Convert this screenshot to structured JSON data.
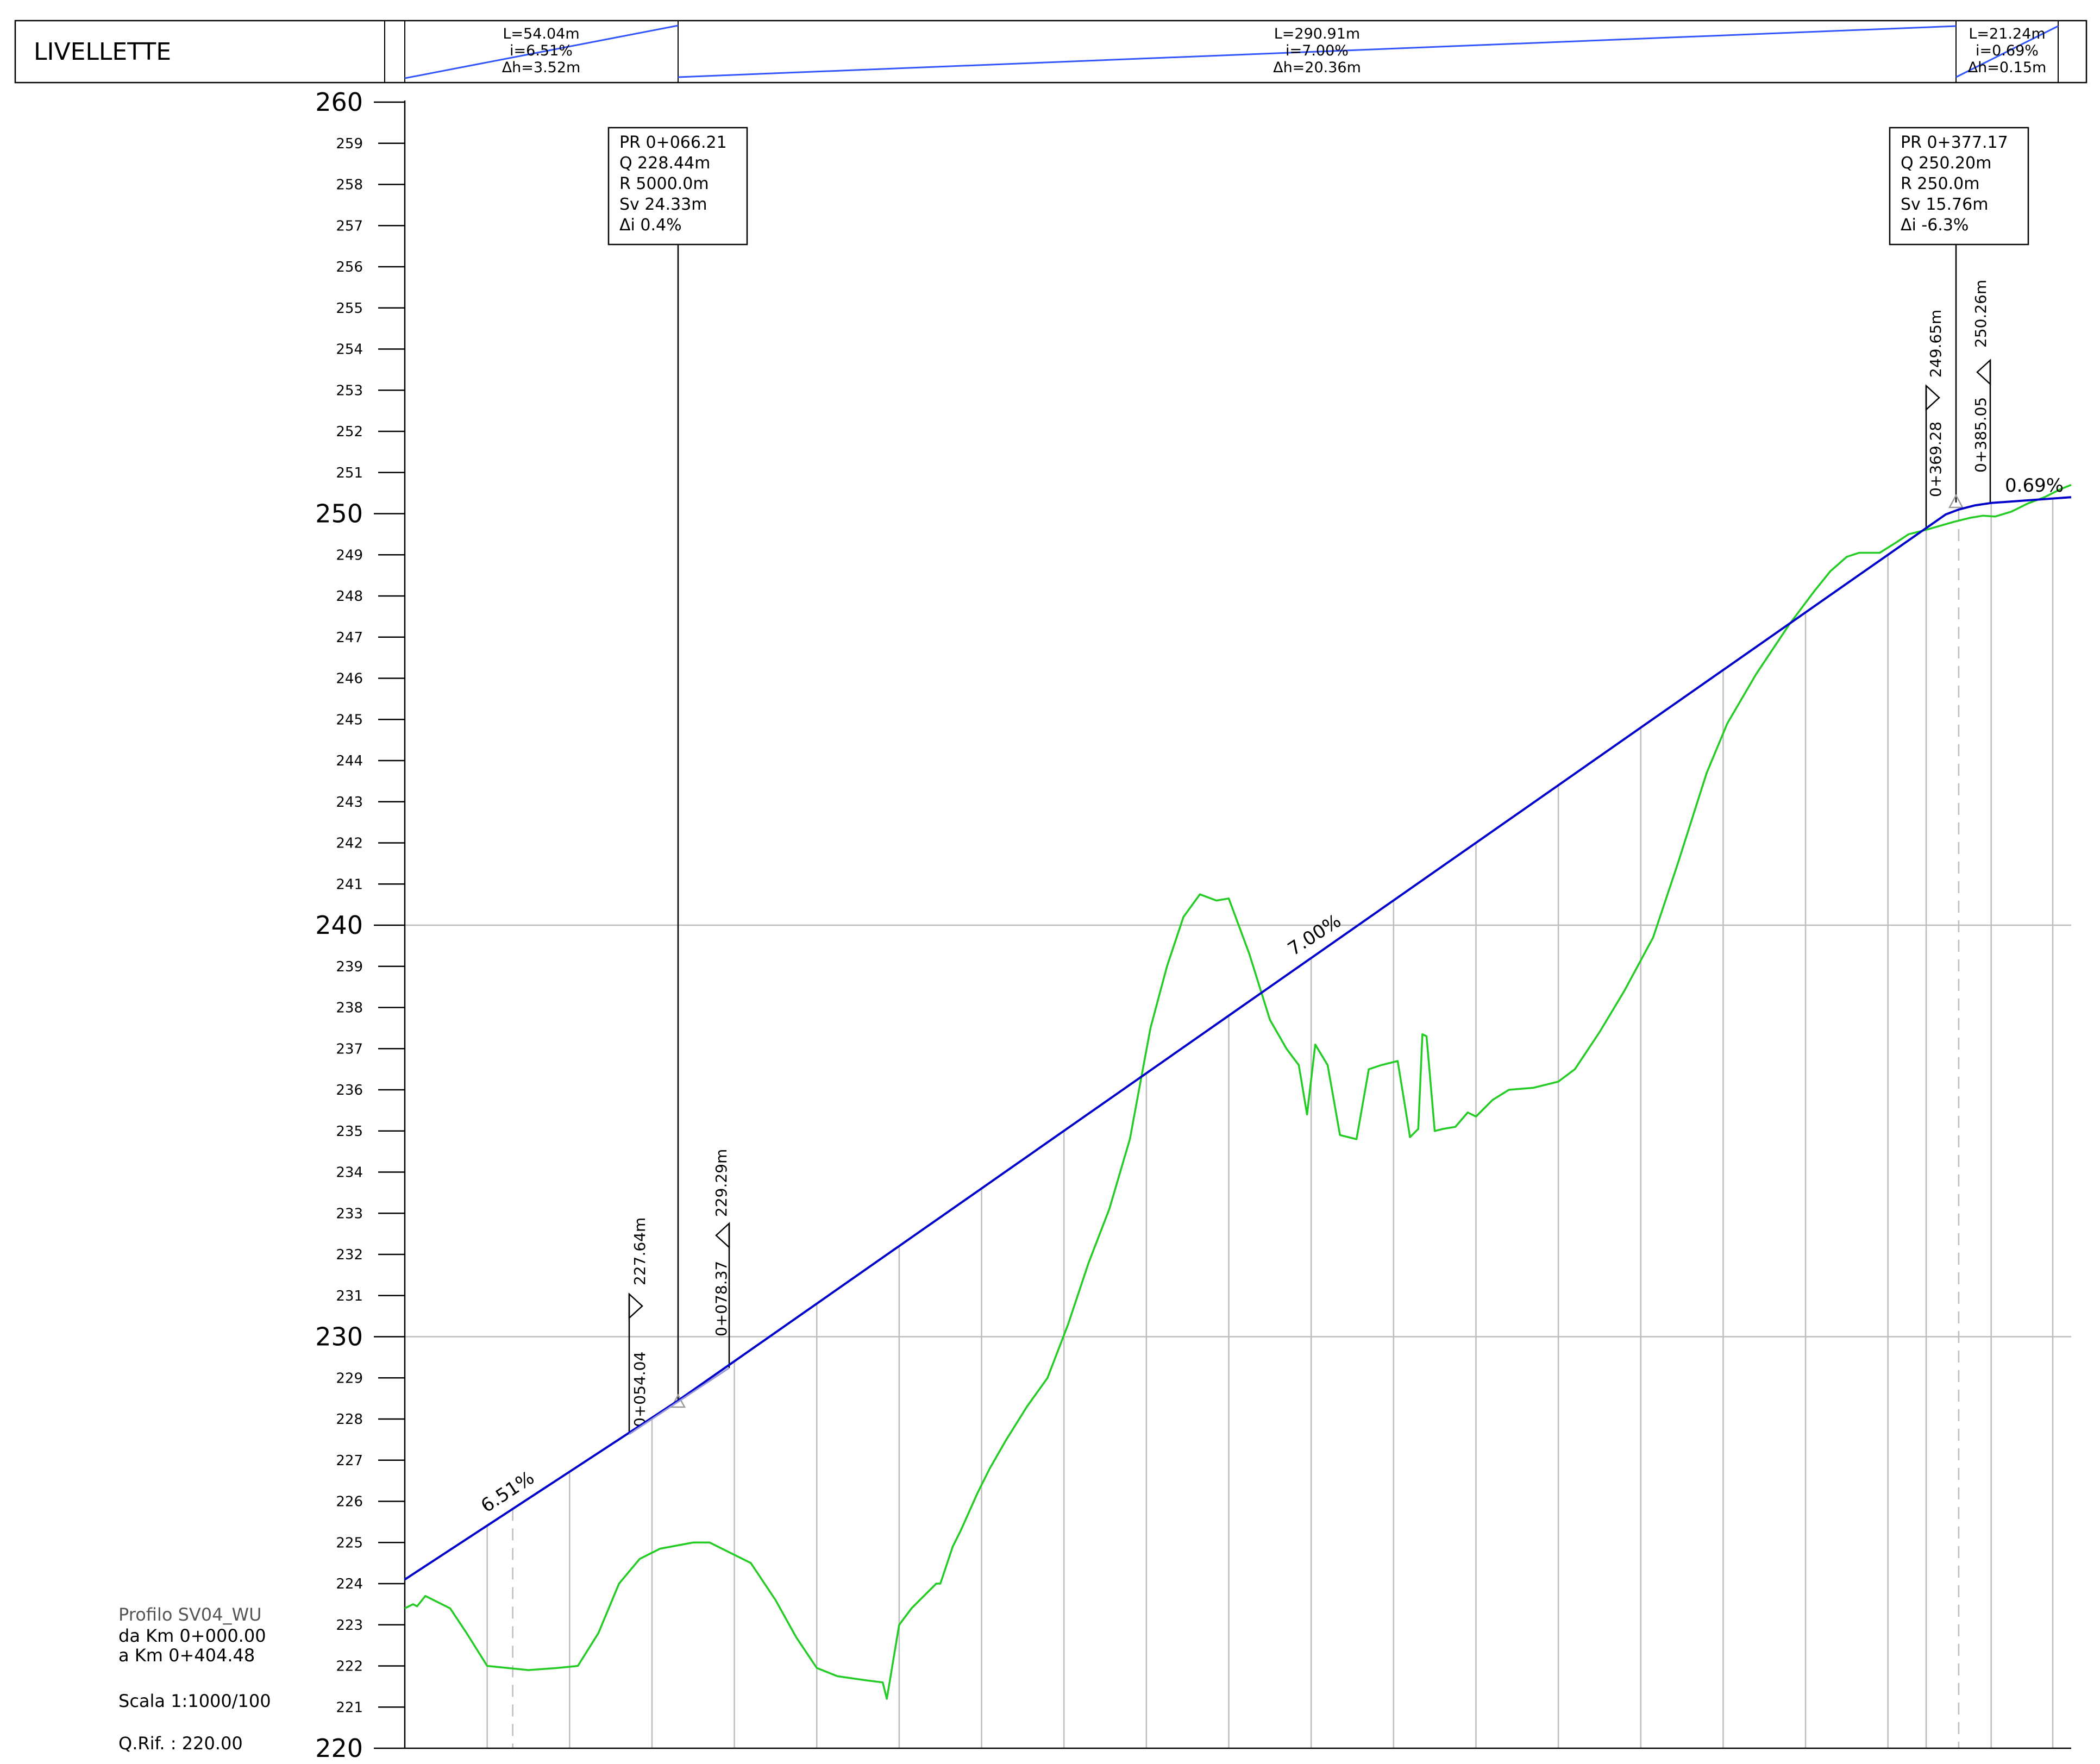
{
  "header": {
    "title": "LIVELLETTE",
    "segments": [
      {
        "lines": [
          "L=54.04m",
          "i=6.51%",
          "Δh=3.52m"
        ]
      },
      {
        "lines": [
          "L=290.91m",
          "i=7.00%",
          "Δh=20.36m"
        ]
      },
      {
        "lines": [
          "L=21.24m",
          "i=0.69%",
          "Δh=0.15m"
        ]
      }
    ]
  },
  "info_block": {
    "profile": "Profilo  SV04_WU",
    "from": "da  Km  0+000.00",
    "to": "a  Km  0+404.48",
    "scale": "Scala  1:1000/100",
    "qrif": "Q.Rif.  :  220.00"
  },
  "vertical_curves": [
    {
      "lines": [
        "PR 0+066.21",
        "Q  228.44m",
        "R  5000.0m",
        "Sv 24.33m",
        "Δi 0.4%"
      ],
      "start_marker": {
        "chainage": "0+054.04",
        "elevation": "227.64m"
      },
      "end_marker": {
        "chainage": "0+078.37",
        "elevation": "229.29m"
      }
    },
    {
      "lines": [
        "PR 0+377.17",
        "Q  250.20m",
        "R  250.0m",
        "Sv 15.76m",
        "Δi -6.3%"
      ],
      "start_marker": {
        "chainage": "0+369.28",
        "elevation": "249.65m"
      },
      "end_marker": {
        "chainage": "0+385.05",
        "elevation": "250.26m"
      }
    }
  ],
  "grade_labels": [
    "6.51%",
    "7.00%",
    "0.69%"
  ],
  "colors": {
    "grade_line": "#0000cc",
    "terrain": "#22cc22",
    "header_segment_line": "#3355ff",
    "grid": "#bdbdbd",
    "frame": "#000000"
  },
  "chart_data": {
    "type": "line",
    "y_axis": {
      "min": 220,
      "max": 260,
      "step": 1,
      "major_step": 10,
      "labels": [
        "220",
        "221",
        "222",
        "223",
        "224",
        "225",
        "226",
        "227",
        "228",
        "229",
        "230",
        "231",
        "232",
        "233",
        "234",
        "235",
        "236",
        "237",
        "238",
        "239",
        "240",
        "241",
        "242",
        "243",
        "244",
        "245",
        "246",
        "247",
        "248",
        "249",
        "250",
        "251",
        "252",
        "253",
        "254",
        "255",
        "256",
        "257",
        "258",
        "259",
        "260"
      ]
    },
    "x_range": [
      0,
      404.48
    ],
    "gridlines_y": [
      230,
      240
    ],
    "stations": [
      0,
      20,
      26.2,
      40,
      60,
      80,
      100,
      120,
      140,
      160,
      180,
      200,
      220,
      240,
      260,
      280,
      300,
      320,
      340,
      360,
      369.28,
      377.17,
      385.05,
      400
    ],
    "stations_dashed": [
      26.2,
      377.17
    ],
    "series": [
      {
        "kind": "grade_line",
        "points": [
          [
            0,
            224.1
          ],
          [
            54.04,
            227.64
          ],
          [
            66.21,
            228.44
          ],
          [
            78.37,
            229.29
          ],
          [
            369.28,
            249.65
          ],
          [
            374,
            249.98
          ],
          [
            377.17,
            250.1
          ],
          [
            381,
            250.2
          ],
          [
            385.05,
            250.26
          ],
          [
            404.48,
            250.4
          ]
        ]
      },
      {
        "kind": "terrain",
        "points": [
          [
            0,
            223.4
          ],
          [
            2,
            223.5
          ],
          [
            3,
            223.45
          ],
          [
            5,
            223.7
          ],
          [
            7,
            223.6
          ],
          [
            11,
            223.4
          ],
          [
            15,
            222.8
          ],
          [
            20,
            222.0
          ],
          [
            30,
            221.9
          ],
          [
            37,
            221.95
          ],
          [
            42,
            222.0
          ],
          [
            47,
            222.8
          ],
          [
            52,
            224.0
          ],
          [
            57,
            224.6
          ],
          [
            62,
            224.85
          ],
          [
            70,
            225.0
          ],
          [
            74,
            225.0
          ],
          [
            78,
            224.8
          ],
          [
            84,
            224.5
          ],
          [
            90,
            223.6
          ],
          [
            95,
            222.7
          ],
          [
            100,
            221.95
          ],
          [
            105,
            221.75
          ],
          [
            112,
            221.65
          ],
          [
            116,
            221.6
          ],
          [
            117,
            221.2
          ],
          [
            120,
            223.0
          ],
          [
            123,
            223.4
          ],
          [
            127,
            223.8
          ],
          [
            129,
            224.0
          ],
          [
            130,
            224.0
          ],
          [
            133,
            224.9
          ],
          [
            135,
            225.3
          ],
          [
            139,
            226.2
          ],
          [
            142,
            226.8
          ],
          [
            146,
            227.5
          ],
          [
            151,
            228.3
          ],
          [
            156,
            229.0
          ],
          [
            161,
            230.3
          ],
          [
            166,
            231.8
          ],
          [
            171,
            233.1
          ],
          [
            176,
            234.8
          ],
          [
            181,
            237.5
          ],
          [
            185,
            239.0
          ],
          [
            189,
            240.2
          ],
          [
            193,
            240.75
          ],
          [
            197,
            240.6
          ],
          [
            200,
            240.65
          ],
          [
            205,
            239.3
          ],
          [
            210,
            237.7
          ],
          [
            214,
            237.0
          ],
          [
            217,
            236.6
          ],
          [
            219,
            235.4
          ],
          [
            221,
            237.1
          ],
          [
            224,
            236.6
          ],
          [
            227,
            234.9
          ],
          [
            231,
            234.8
          ],
          [
            234,
            236.5
          ],
          [
            237,
            236.6
          ],
          [
            241,
            236.7
          ],
          [
            244,
            234.85
          ],
          [
            246,
            235.05
          ],
          [
            247,
            237.35
          ],
          [
            248,
            237.3
          ],
          [
            250,
            235.0
          ],
          [
            252,
            235.05
          ],
          [
            255,
            235.1
          ],
          [
            258,
            235.45
          ],
          [
            260,
            235.35
          ],
          [
            264,
            235.75
          ],
          [
            268,
            236.0
          ],
          [
            274,
            236.05
          ],
          [
            280,
            236.2
          ],
          [
            284,
            236.5
          ],
          [
            290,
            237.4
          ],
          [
            296,
            238.4
          ],
          [
            303,
            239.7
          ],
          [
            309,
            241.5
          ],
          [
            316,
            243.7
          ],
          [
            321,
            244.9
          ],
          [
            328,
            246.1
          ],
          [
            336,
            247.3
          ],
          [
            342,
            248.1
          ],
          [
            346,
            248.6
          ],
          [
            350,
            248.95
          ],
          [
            353,
            249.05
          ],
          [
            358,
            249.05
          ],
          [
            362,
            249.3
          ],
          [
            365,
            249.5
          ],
          [
            369,
            249.6
          ],
          [
            376,
            249.8
          ],
          [
            380,
            249.9
          ],
          [
            383,
            249.95
          ],
          [
            386,
            249.93
          ],
          [
            390,
            250.05
          ],
          [
            394,
            250.25
          ],
          [
            398,
            250.4
          ],
          [
            402,
            250.6
          ],
          [
            404.48,
            250.7
          ]
        ]
      }
    ]
  }
}
